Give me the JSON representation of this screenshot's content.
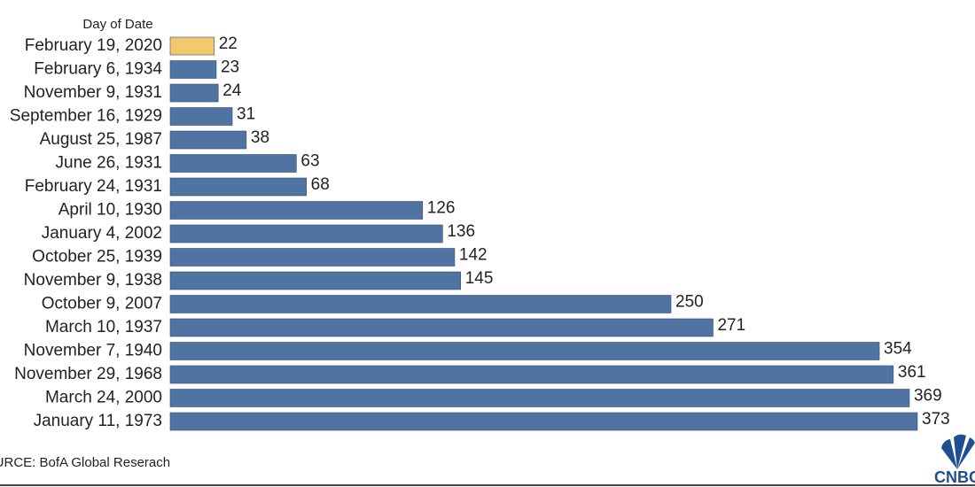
{
  "chart_data": {
    "type": "barh",
    "axis_label": "Day of Date",
    "categories": [
      "February 19, 2020",
      "February 6, 1934",
      "November 9, 1931",
      "September 16, 1929",
      "August 25, 1987",
      "June 26, 1931",
      "February 24, 1931",
      "April 10, 1930",
      "January 4, 2002",
      "October 25, 1939",
      "November 9, 1938",
      "October 9, 2007",
      "March 10, 1937",
      "November 7, 1940",
      "November 29, 1968",
      "March 24, 2000",
      "January 11, 1973"
    ],
    "values": [
      22,
      23,
      24,
      31,
      38,
      63,
      68,
      126,
      136,
      142,
      145,
      250,
      271,
      354,
      361,
      369,
      373
    ],
    "colors": [
      "#f2c96d",
      "#4f74a1",
      "#4f74a1",
      "#4f74a1",
      "#4f74a1",
      "#4f74a1",
      "#4f74a1",
      "#4f74a1",
      "#4f74a1",
      "#4f74a1",
      "#4f74a1",
      "#4f74a1",
      "#4f74a1",
      "#4f74a1",
      "#4f74a1",
      "#4f74a1",
      "#4f74a1"
    ],
    "source": "SOURCE: BofA Global Reserach",
    "logo_text": "CNBC"
  }
}
